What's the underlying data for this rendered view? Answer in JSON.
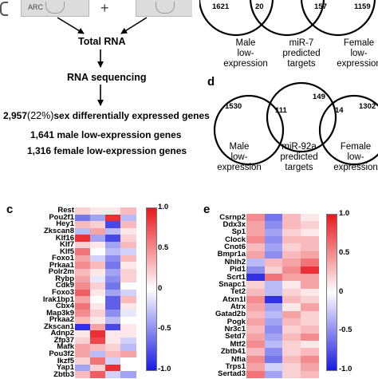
{
  "workflow": {
    "region_label": "ARC",
    "plus_sign": "+",
    "step1": "Total RNA",
    "step2": "RNA sequencing",
    "result_line1_count": "2,957",
    "result_line1_pct": "(22%)",
    "result_line1_text": "sex differentially expressed genes",
    "result_line2": "1,641 male low-expression genes",
    "result_line3": "1,316 female low-expression genes"
  },
  "venn_top": {
    "left_count": "1621",
    "mid_count": "20",
    "mid_right_count": "157",
    "right_count": "1159",
    "label_left": [
      "Male",
      "low-",
      "expression"
    ],
    "label_mid": [
      "miR-7",
      "predicted",
      "targets"
    ],
    "label_right": [
      "Female",
      "low-",
      "expression"
    ]
  },
  "venn_d": {
    "panel_letter": "d",
    "left_count": "1530",
    "left_mid_count": "111",
    "mid_count": "149",
    "mid_right_count": "14",
    "right_count": "1302",
    "label_left": [
      "Male",
      "low-",
      "expression"
    ],
    "label_mid": [
      "miR-92a",
      "predicted",
      "targets"
    ],
    "label_right": [
      "Female",
      "low-",
      "expression"
    ]
  },
  "heatmap_c": {
    "panel_letter": "c",
    "genes": [
      "Rest",
      "Pou2f1",
      "Hey1",
      "Zkscan8",
      "Klf16",
      "Klf7",
      "Klf5",
      "Foxo1",
      "Prkaa1",
      "Polr2m",
      "Rybp",
      "Cdk9",
      "Foxo3",
      "Irak1bp1",
      "Cbx4",
      "Map3k9",
      "Prkaa2",
      "Zkscan1",
      "Adnp2",
      "Zfp37",
      "Mafk",
      "Pou3f2",
      "Ikzf5",
      "Yap1",
      "Zbtb3"
    ],
    "values": [
      [
        0.2,
        0.1,
        0.1,
        0.3
      ],
      [
        -0.6,
        -0.4,
        0.9,
        -0.3
      ],
      [
        0.3,
        0.2,
        -0.8,
        0.3
      ],
      [
        -0.3,
        0.4,
        -0.3,
        0.1
      ],
      [
        0.9,
        -0.4,
        -0.8,
        0.2
      ],
      [
        0.2,
        0.1,
        -0.4,
        0.3
      ],
      [
        0.6,
        0.0,
        -0.3,
        -0.2
      ],
      [
        0.4,
        -0.2,
        -0.5,
        0.3
      ],
      [
        0.5,
        0.3,
        -0.6,
        0.1
      ],
      [
        0.3,
        0.1,
        -0.4,
        0.2
      ],
      [
        0.4,
        -0.1,
        -0.5,
        0.2
      ],
      [
        0.5,
        0.2,
        -0.6,
        0.0
      ],
      [
        0.7,
        0.1,
        -0.4,
        -0.2
      ],
      [
        0.4,
        0.0,
        -0.7,
        0.3
      ],
      [
        0.6,
        0.1,
        -0.7,
        0.1
      ],
      [
        0.5,
        0.2,
        -0.5,
        -0.1
      ],
      [
        0.3,
        0.1,
        -0.3,
        0.0
      ],
      [
        -0.9,
        0.4,
        -0.8,
        0.1
      ],
      [
        0.1,
        0.9,
        0.1,
        0.1
      ],
      [
        0.2,
        0.8,
        0.1,
        -0.2
      ],
      [
        0.4,
        0.3,
        0.2,
        -0.3
      ],
      [
        0.4,
        -0.3,
        0.3,
        0.4
      ],
      [
        0.2,
        0.6,
        -0.2,
        0.0
      ],
      [
        -0.4,
        0.2,
        0.9,
        0.0
      ],
      [
        0.3,
        0.7,
        -0.2,
        -0.4
      ]
    ],
    "colorbar_ticks": [
      "1.0",
      "0.5",
      "0",
      "-0.5",
      "-1.0"
    ]
  },
  "heatmap_e": {
    "panel_letter": "e",
    "genes": [
      "Csrnp2",
      "Ddx3x",
      "Sp1",
      "Clock",
      "Cnot6",
      "Bmpr1a",
      "Nhlh2",
      "Pid1",
      "Scrt1",
      "Snapc1",
      "Tet2",
      "Atxn1l",
      "Atrx",
      "Gatad2b",
      "Pogk",
      "Nr3c1",
      "Setd7",
      "Mtf2",
      "Zbtb41",
      "Nfia",
      "Trps1",
      "Sertad3"
    ],
    "values": [
      [
        0.5,
        -0.6,
        0.3,
        0.1
      ],
      [
        0.4,
        -0.5,
        0.3,
        0.2
      ],
      [
        0.4,
        -0.4,
        0.2,
        0.1
      ],
      [
        0.5,
        -0.5,
        0.3,
        0.3
      ],
      [
        0.3,
        -0.4,
        0.2,
        0.3
      ],
      [
        0.4,
        -0.5,
        0.3,
        0.4
      ],
      [
        -0.3,
        0.3,
        0.4,
        0.6
      ],
      [
        -0.5,
        0.2,
        0.5,
        0.9
      ],
      [
        -0.9,
        0.6,
        0.4,
        0.4
      ],
      [
        0.2,
        -0.3,
        0.1,
        0.4
      ],
      [
        0.3,
        -0.3,
        0.2,
        0.1
      ],
      [
        0.5,
        -0.9,
        0.3,
        0.2
      ],
      [
        0.4,
        -0.4,
        0.1,
        0.4
      ],
      [
        0.3,
        -0.3,
        0.4,
        0.2
      ],
      [
        0.4,
        -0.4,
        0.3,
        0.2
      ],
      [
        0.3,
        -0.5,
        0.2,
        0.3
      ],
      [
        0.4,
        -0.4,
        0.3,
        0.5
      ],
      [
        0.5,
        -0.3,
        0.2,
        0.1
      ],
      [
        0.3,
        -0.5,
        0.2,
        0.3
      ],
      [
        0.5,
        -0.6,
        0.3,
        0.5
      ],
      [
        0.4,
        -0.2,
        0.2,
        0.4
      ],
      [
        0.6,
        -0.4,
        0.2,
        0.3
      ]
    ],
    "colorbar_ticks": [
      "1.0",
      "0.5",
      "0",
      "-0.5",
      "-1.0"
    ]
  },
  "colors": {
    "heat_high": "#e8181e",
    "heat_mid": "#ffffff",
    "heat_low": "#1a1ae0",
    "line": "#000000"
  }
}
